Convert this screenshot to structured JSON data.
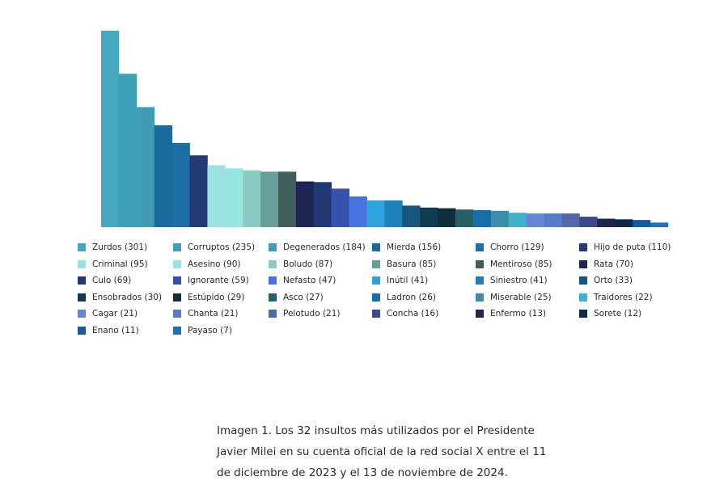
{
  "chart_data": {
    "type": "bar",
    "legend_position": "bottom",
    "grid": false,
    "ylim": [
      0,
      301
    ],
    "series": [
      {
        "values": [
          301,
          235,
          184,
          156,
          129,
          110,
          95,
          90,
          87,
          85,
          85,
          70,
          69,
          59,
          47,
          41,
          41,
          33,
          30,
          29,
          27,
          26,
          25,
          22,
          21,
          21,
          21,
          16,
          13,
          12,
          11,
          7
        ],
        "colors": [
          "#46a8c0",
          "#3ea0b8",
          "#3f9cb6",
          "#19699c",
          "#1d6ea5",
          "#233a72",
          "#9ae1df",
          "#93e6e0",
          "#8ccac4",
          "#689e98",
          "#3f5e5c",
          "#1d2654",
          "#233774",
          "#3553ad",
          "#4673e0",
          "#2ea2dc",
          "#1f81b7",
          "#17567e",
          "#0e3d52",
          "#122e3d",
          "#285e68",
          "#166da8",
          "#3b8ea6",
          "#40b0cd",
          "#6188d0",
          "#557dc8",
          "#5368a8",
          "#3b4a8a",
          "#1f2848",
          "#0f2a48",
          "#1a5a9c",
          "#1e6fc0"
        ]
      }
    ],
    "legend": [
      "Zurdos (301)",
      "Corruptos  (235)",
      "Degenerados (184)",
      "Mierda (156)",
      "Chorro (129)",
      "Hijo de puta (110)",
      "Criminal (95)",
      "Asesino (90)",
      "Boludo (87)",
      "Basura (85)",
      "Mentiroso (85)",
      "Rata (70)",
      "Culo (69)",
      "Ignorante (59)",
      "Nefasto (47)",
      "Inútil (41)",
      "Siniestro (41)",
      "Orto (33)",
      "Ensobrados (30)",
      "Estúpido  (29)",
      "Asco (27)",
      "Ladron (26)",
      "Miserable (25)",
      "Traidores (22)",
      "Cagar (21)",
      "Chanta (21)",
      "Pelotudo (21)",
      "Concha (16)",
      "Enfermo (13)",
      "Sorete (12)",
      "Enano (11)",
      "Payaso (7)"
    ]
  },
  "caption": {
    "line1": "Imagen 1. Los 32 insultos más utilizados por el Presidente",
    "line2": "Javier Milei en su cuenta oficial de la red social X entre el 11",
    "line3": "de diciembre de 2023 y el 13 de noviembre de 2024."
  }
}
